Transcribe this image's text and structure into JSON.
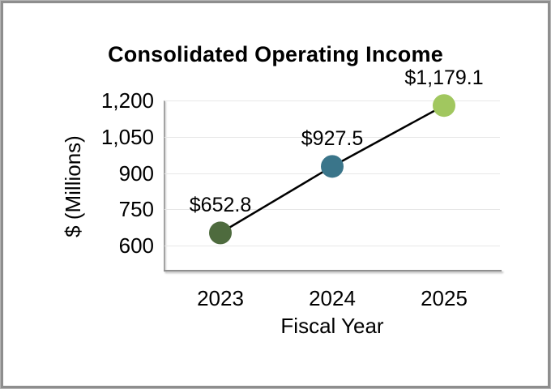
{
  "frame": {
    "outer_border_color": "#b5b5b5",
    "inner_border_color": "#8e8e8e",
    "background": "#ffffff"
  },
  "chart_data": {
    "type": "line",
    "title": "Consolidated Operating Income",
    "xlabel": "Fiscal Year",
    "ylabel": "$ (Millions)",
    "categories": [
      "2023",
      "2024",
      "2025"
    ],
    "series": [
      {
        "name": "Consolidated Operating Income",
        "values": [
          652.8,
          927.5,
          1179.1
        ],
        "point_labels": [
          "$652.8",
          "$927.5",
          "$1,179.1"
        ],
        "point_colors": [
          "#4e6b3e",
          "#3a758a",
          "#a1c75f"
        ],
        "line_color": "#000000"
      }
    ],
    "ylim": [
      500,
      1200
    ],
    "yticks": [
      600,
      750,
      900,
      1050,
      1200
    ],
    "ytick_labels": [
      "600",
      "750",
      "900",
      "1,050",
      "1,200"
    ],
    "grid": true,
    "gridline_color": "#e7e7e7",
    "axis_line_color": "#8f8f8f",
    "legend_position": "none",
    "text_color": "#000000"
  }
}
